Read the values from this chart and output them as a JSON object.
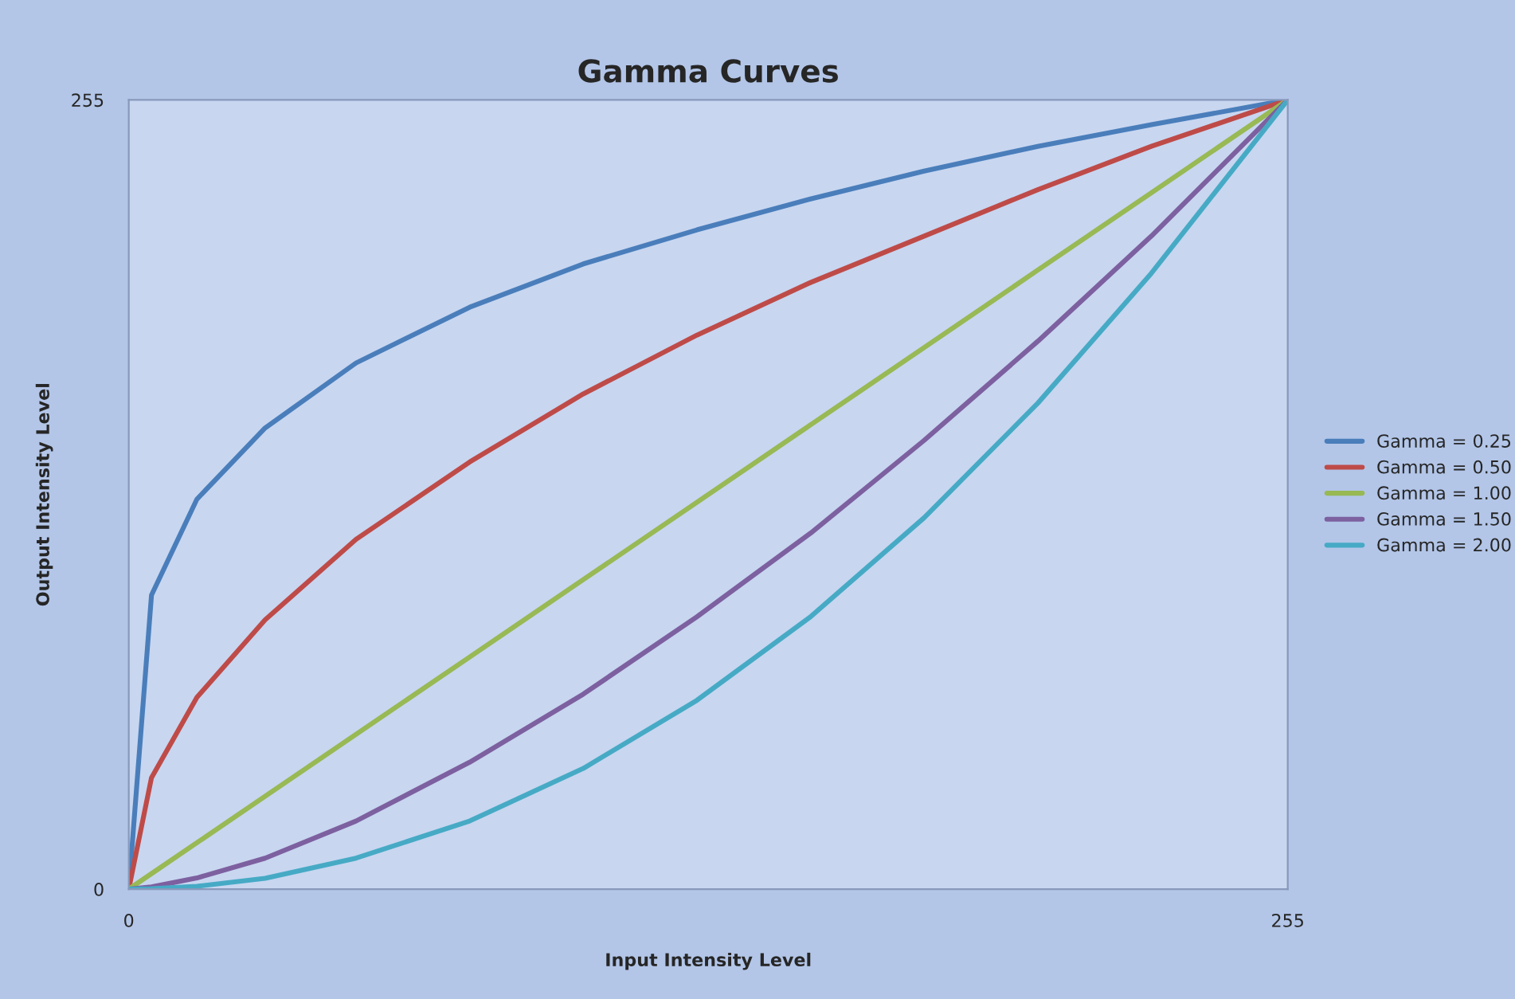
{
  "chart_data": {
    "type": "line",
    "title": "Gamma Curves",
    "xlabel": "Input Intensity Level",
    "ylabel": "Output Intensity Level",
    "x": [
      0,
      5,
      15,
      30,
      50,
      75,
      100,
      125,
      150,
      175,
      200,
      225,
      255
    ],
    "series": [
      {
        "name": "Gamma = 0.25",
        "color": "#4a7ebb",
        "values": [
          0,
          95,
          126,
          149,
          170,
          188,
          202,
          213,
          223,
          232,
          240,
          247,
          255
        ]
      },
      {
        "name": "Gamma = 0.50",
        "color": "#be4b48",
        "values": [
          0,
          36,
          62,
          87,
          113,
          138,
          160,
          179,
          196,
          211,
          226,
          240,
          255
        ]
      },
      {
        "name": "Gamma = 1.00",
        "color": "#98b954",
        "values": [
          0,
          5,
          15,
          30,
          50,
          75,
          100,
          125,
          150,
          175,
          200,
          225,
          255
        ]
      },
      {
        "name": "Gamma = 1.50",
        "color": "#7d60a0",
        "values": [
          0,
          0.7,
          3.6,
          10,
          22,
          41,
          63,
          88,
          115,
          145,
          177,
          211,
          255
        ]
      },
      {
        "name": "Gamma = 2.00",
        "color": "#46aac5",
        "values": [
          0,
          0.1,
          0.9,
          3.5,
          10,
          22,
          39,
          61,
          88,
          120,
          157,
          199,
          255
        ]
      }
    ],
    "xlim": [
      0,
      255
    ],
    "ylim": [
      0,
      255
    ],
    "xticks": [
      0,
      255
    ],
    "yticks": [
      0,
      255
    ],
    "grid": false,
    "legend": "right",
    "marker": "none",
    "line_style": "solid"
  }
}
